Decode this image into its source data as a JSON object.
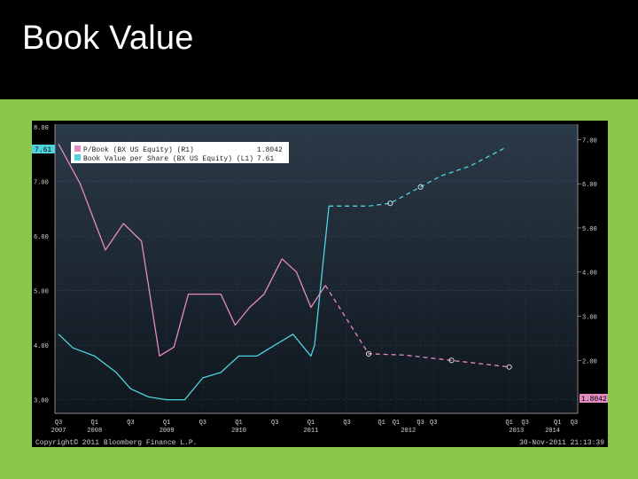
{
  "slide": {
    "title": "Book Value"
  },
  "chart_data": {
    "type": "line",
    "title": "",
    "xlabel": "",
    "ylabel": "",
    "x_range": [
      2007.65,
      2014.9
    ],
    "left_axis": {
      "ylim": [
        2.75,
        8.05
      ],
      "ticks": [
        "3.00",
        "4.00",
        "5.00",
        "6.00",
        "7.00",
        "8.00"
      ],
      "tick_values": [
        3,
        4,
        5,
        6,
        7,
        8
      ]
    },
    "right_axis": {
      "ylim": [
        0.8,
        7.35
      ],
      "ticks": [
        "2.00",
        "3.00",
        "4.00",
        "5.00",
        "6.00",
        "7.00"
      ],
      "tick_values": [
        2,
        3,
        4,
        5,
        6,
        7
      ]
    },
    "legend": [
      {
        "name": "P/Book (BX US Equity) (R1)",
        "value": "1.8042",
        "color": "#e58cbf"
      },
      {
        "name": "Book Value per Share (BX US Equity) (L1)",
        "value": "7.61",
        "color": "#4fd4df"
      }
    ],
    "value_tags": {
      "left": "7.61",
      "right": "1.8042"
    },
    "x_ticks": [
      "Q3",
      "Q1",
      "Q3",
      "Q1",
      "Q3",
      "Q1",
      "Q3",
      "Q1",
      "Q3",
      "Q1",
      "Q1",
      "Q3",
      "Q3",
      "Q1",
      "Q3",
      "Q1",
      "Q3"
    ],
    "x_tick_values": [
      2007.7,
      2008.2,
      2008.7,
      2009.2,
      2009.7,
      2010.2,
      2010.7,
      2011.2,
      2011.7,
      2012.18,
      2012.38,
      2012.72,
      2012.9,
      2013.95,
      2014.17,
      2014.62,
      2014.85
    ],
    "x_years": [
      "2007",
      "2008",
      "2009",
      "2010",
      "2011",
      "2012",
      "2013",
      "2014"
    ],
    "x_year_values": [
      2007.7,
      2008.2,
      2009.2,
      2010.2,
      2011.2,
      2012.55,
      2014.05,
      2014.55
    ],
    "series": [
      {
        "name": "Book Value per Share (BX US Equity) (L1)",
        "axis": "left",
        "color": "#4fd4df",
        "x": [
          2007.7,
          2007.9,
          2008.2,
          2008.5,
          2008.7,
          2008.95,
          2009.2,
          2009.45,
          2009.7,
          2009.95,
          2010.2,
          2010.45,
          2010.7,
          2010.95,
          2011.2,
          2011.25,
          2011.45
        ],
        "values": [
          4.2,
          3.95,
          3.8,
          3.5,
          3.2,
          3.05,
          3.0,
          3.0,
          3.4,
          3.5,
          3.8,
          3.8,
          4.0,
          4.2,
          3.8,
          4.0,
          6.55
        ]
      },
      {
        "name": "Book Value per Share (BX US Equity) (L1) estimate",
        "axis": "left",
        "color": "#4fd4df",
        "style": "dashed",
        "markers": [
          2012.3,
          2012.72
        ],
        "x": [
          2011.45,
          2012.0,
          2012.3,
          2012.72,
          2013.0,
          2013.4,
          2013.9
        ],
        "values": [
          6.55,
          6.55,
          6.6,
          6.9,
          7.1,
          7.28,
          7.62
        ]
      },
      {
        "name": "P/Book (BX US Equity) (R1)",
        "axis": "right",
        "color": "#e58cbf",
        "x": [
          2007.7,
          2008.0,
          2008.35,
          2008.6,
          2008.85,
          2009.1,
          2009.3,
          2009.5,
          2009.75,
          2009.95,
          2010.15,
          2010.35,
          2010.55,
          2010.8,
          2011.0,
          2011.2,
          2011.4
        ],
        "values": [
          6.9,
          6.0,
          4.5,
          5.1,
          4.7,
          2.1,
          2.3,
          3.5,
          3.5,
          3.5,
          2.8,
          3.2,
          3.5,
          4.3,
          4.0,
          3.2,
          3.7
        ]
      },
      {
        "name": "P/Book (BX US Equity) (R1) estimate",
        "axis": "right",
        "color": "#e58cbf",
        "style": "dashed",
        "markers": [
          2012.0,
          2013.15,
          2013.95
        ],
        "x": [
          2011.4,
          2012.0,
          2012.5,
          2013.15,
          2013.95
        ],
        "values": [
          3.7,
          2.15,
          2.12,
          2.0,
          1.85
        ]
      }
    ],
    "footer_left": "Copyright© 2011 Bloomberg Finance L.P.",
    "footer_right": "30-Nov-2011 21:13:39",
    "grid": true,
    "legend_position": "top-left"
  }
}
